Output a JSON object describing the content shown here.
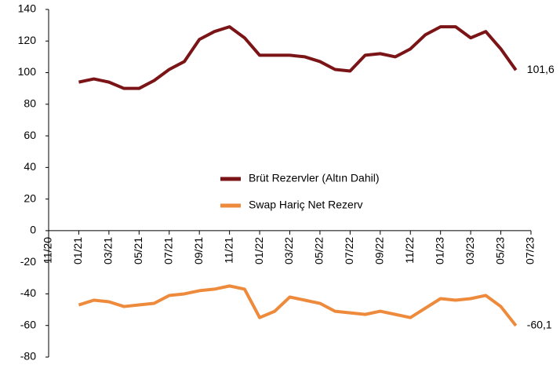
{
  "chart_data": {
    "type": "line",
    "x": [
      "01/21",
      "02/21",
      "03/21",
      "04/21",
      "05/21",
      "06/21",
      "07/21",
      "08/21",
      "09/21",
      "10/21",
      "11/21",
      "12/21",
      "01/22",
      "02/22",
      "03/22",
      "04/22",
      "05/22",
      "06/22",
      "07/22",
      "08/22",
      "09/22",
      "10/22",
      "11/22",
      "12/22",
      "01/23",
      "02/23",
      "03/23",
      "04/23",
      "05/23",
      "06/23"
    ],
    "series": [
      {
        "name": "Brüt Rezervler (Altın Dahil)",
        "color": "#7b1416",
        "values": [
          94,
          96,
          94,
          90,
          90,
          95,
          102,
          107,
          121,
          126,
          129,
          122,
          111,
          111,
          111,
          110,
          107,
          102,
          101,
          111,
          112,
          110,
          115,
          124,
          129,
          129,
          122,
          126,
          115,
          101.6
        ],
        "value_labels": [
          null,
          null,
          null,
          null,
          null,
          null,
          null,
          null,
          null,
          null,
          null,
          null,
          null,
          null,
          null,
          null,
          null,
          null,
          null,
          null,
          null,
          null,
          null,
          null,
          null,
          null,
          null,
          null,
          null,
          "101,6"
        ]
      },
      {
        "name": "Swap Hariç Net Rezerv",
        "color": "#ee8a3c",
        "values": [
          -47,
          -44,
          -45,
          -48,
          -47,
          -46,
          -41,
          -40,
          -38,
          -37,
          -35,
          -37,
          -55,
          -51,
          -42,
          -44,
          -46,
          -51,
          -52,
          -53,
          -51,
          -53,
          -55,
          -49,
          -43,
          -44,
          -43,
          -41,
          -48,
          -60.1
        ],
        "value_labels": [
          null,
          null,
          null,
          null,
          null,
          null,
          null,
          null,
          null,
          null,
          null,
          null,
          null,
          null,
          null,
          null,
          null,
          null,
          null,
          null,
          null,
          null,
          null,
          null,
          null,
          null,
          null,
          null,
          null,
          "-60,1"
        ]
      }
    ],
    "xlim": [
      "11/20",
      "07/23"
    ],
    "xticks": [
      "11/20",
      "01/21",
      "03/21",
      "05/21",
      "07/21",
      "09/21",
      "11/21",
      "01/22",
      "03/22",
      "05/22",
      "07/22",
      "09/22",
      "11/22",
      "01/23",
      "03/23",
      "05/23",
      "07/23"
    ],
    "ylim": [
      -80,
      140
    ],
    "yticks": [
      -80,
      -60,
      -40,
      -20,
      0,
      20,
      40,
      60,
      80,
      100,
      120,
      140
    ],
    "grid": false
  }
}
